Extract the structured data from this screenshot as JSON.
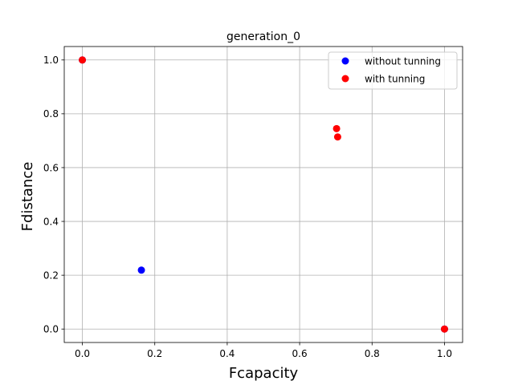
{
  "chart_data": {
    "type": "scatter",
    "title": "generation_0",
    "xlabel": "Fcapacity",
    "ylabel": "Fdistance",
    "xlim": [
      -0.05,
      1.05
    ],
    "ylim": [
      -0.05,
      1.05
    ],
    "xticks": [
      0.0,
      0.2,
      0.4,
      0.6,
      0.8,
      1.0
    ],
    "yticks": [
      0.0,
      0.2,
      0.4,
      0.6,
      0.8,
      1.0
    ],
    "xtick_labels": [
      "0.0",
      "0.2",
      "0.4",
      "0.6",
      "0.8",
      "1.0"
    ],
    "ytick_labels": [
      "0.0",
      "0.2",
      "0.4",
      "0.6",
      "0.8",
      "1.0"
    ],
    "grid": true,
    "legend_position": "top-right",
    "series": [
      {
        "name": "without tunning",
        "color": "#0000ff",
        "points": [
          [
            0.0,
            1.0
          ],
          [
            0.163,
            0.219
          ],
          [
            1.0,
            0.0
          ]
        ]
      },
      {
        "name": "with tunning",
        "color": "#ff0000",
        "points": [
          [
            0.0,
            1.0
          ],
          [
            0.702,
            0.745
          ],
          [
            0.705,
            0.714
          ],
          [
            1.0,
            0.0
          ]
        ]
      }
    ]
  }
}
